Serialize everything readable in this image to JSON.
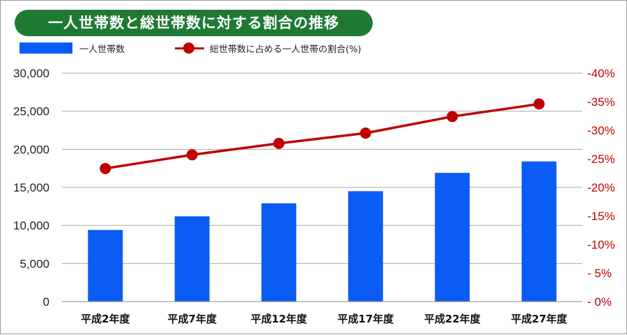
{
  "title": "一人世帯数と総世帯数に対する割合の推移",
  "legend": {
    "bar_label": "一人世帯数",
    "line_label": "総世帯数に占める一人世帯の割合(%)"
  },
  "colors": {
    "title_bg": "#1e7a33",
    "bar": "#0a5cf5",
    "line": "#c00000",
    "grid": "#aaaaaa"
  },
  "chart_data": {
    "type": "bar",
    "categories": [
      "平成2年度",
      "平成7年度",
      "平成12年度",
      "平成17年度",
      "平成22年度",
      "平成27年度"
    ],
    "series": [
      {
        "name": "一人世帯数",
        "type": "bar",
        "axis": "left",
        "values": [
          9400,
          11200,
          12900,
          14500,
          16900,
          18400
        ]
      },
      {
        "name": "総世帯数に占める一人世帯の割合(%)",
        "type": "line",
        "axis": "right",
        "values": [
          23.3,
          25.7,
          27.7,
          29.5,
          32.4,
          34.6
        ]
      }
    ],
    "yleft": {
      "lim": [
        0,
        30000
      ],
      "ticks": [
        0,
        5000,
        10000,
        15000,
        20000,
        25000,
        30000
      ],
      "tick_labels": [
        "0",
        "5,000",
        "10,000",
        "15,000",
        "20,000",
        "25,000",
        "30,000"
      ]
    },
    "yright": {
      "lim": [
        0,
        40
      ],
      "ticks": [
        0,
        5,
        10,
        15,
        20,
        25,
        30,
        35,
        40
      ],
      "tick_labels": [
        "- 0%",
        "- 5%",
        "-10%",
        "-15%",
        "-20%",
        "-25%",
        "-30%",
        "-35%",
        "-40%"
      ]
    },
    "grid": true,
    "legend_position": "top-left"
  }
}
